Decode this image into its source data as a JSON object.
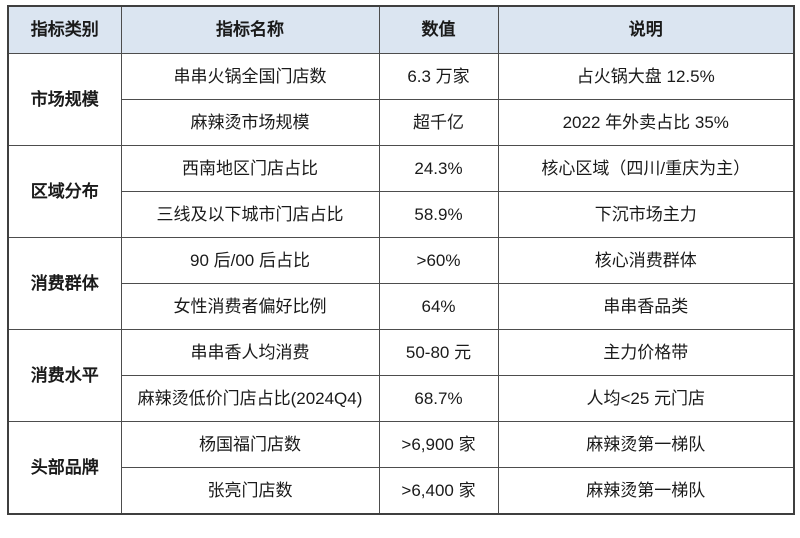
{
  "colors": {
    "header_bg": "#dbe5f1",
    "grid_border": "#4d4d4d",
    "outer_border": "#3f3f3f",
    "text": "#1a1a1a",
    "cell_bg": "#ffffff"
  },
  "table": {
    "headers": {
      "category": "指标类别",
      "name": "指标名称",
      "value": "数值",
      "note": "说明"
    },
    "groups": [
      {
        "category": "市场规模",
        "rows": [
          {
            "name": "串串火锅全国门店数",
            "value": "6.3 万家",
            "note": "占火锅大盘 12.5%"
          },
          {
            "name": "麻辣烫市场规模",
            "value": "超千亿",
            "note": "2022 年外卖占比 35%"
          }
        ]
      },
      {
        "category": "区域分布",
        "rows": [
          {
            "name": "西南地区门店占比",
            "value": "24.3%",
            "note": "核心区域（四川/重庆为主）"
          },
          {
            "name": "三线及以下城市门店占比",
            "value": "58.9%",
            "note": "下沉市场主力"
          }
        ]
      },
      {
        "category": "消费群体",
        "rows": [
          {
            "name": "90 后/00 后占比",
            "value": ">60%",
            "note": "核心消费群体"
          },
          {
            "name": "女性消费者偏好比例",
            "value": "64%",
            "note": "串串香品类"
          }
        ]
      },
      {
        "category": "消费水平",
        "rows": [
          {
            "name": "串串香人均消费",
            "value": "50-80 元",
            "note": "主力价格带"
          },
          {
            "name": "麻辣烫低价门店占比(2024Q4)",
            "value": "68.7%",
            "note": "人均<25 元门店"
          }
        ]
      },
      {
        "category": "头部品牌",
        "rows": [
          {
            "name": "杨国福门店数",
            "value": ">6,900 家",
            "note": "麻辣烫第一梯队"
          },
          {
            "name": "张亮门店数",
            "value": ">6,400 家",
            "note": "麻辣烫第一梯队"
          }
        ]
      }
    ]
  }
}
